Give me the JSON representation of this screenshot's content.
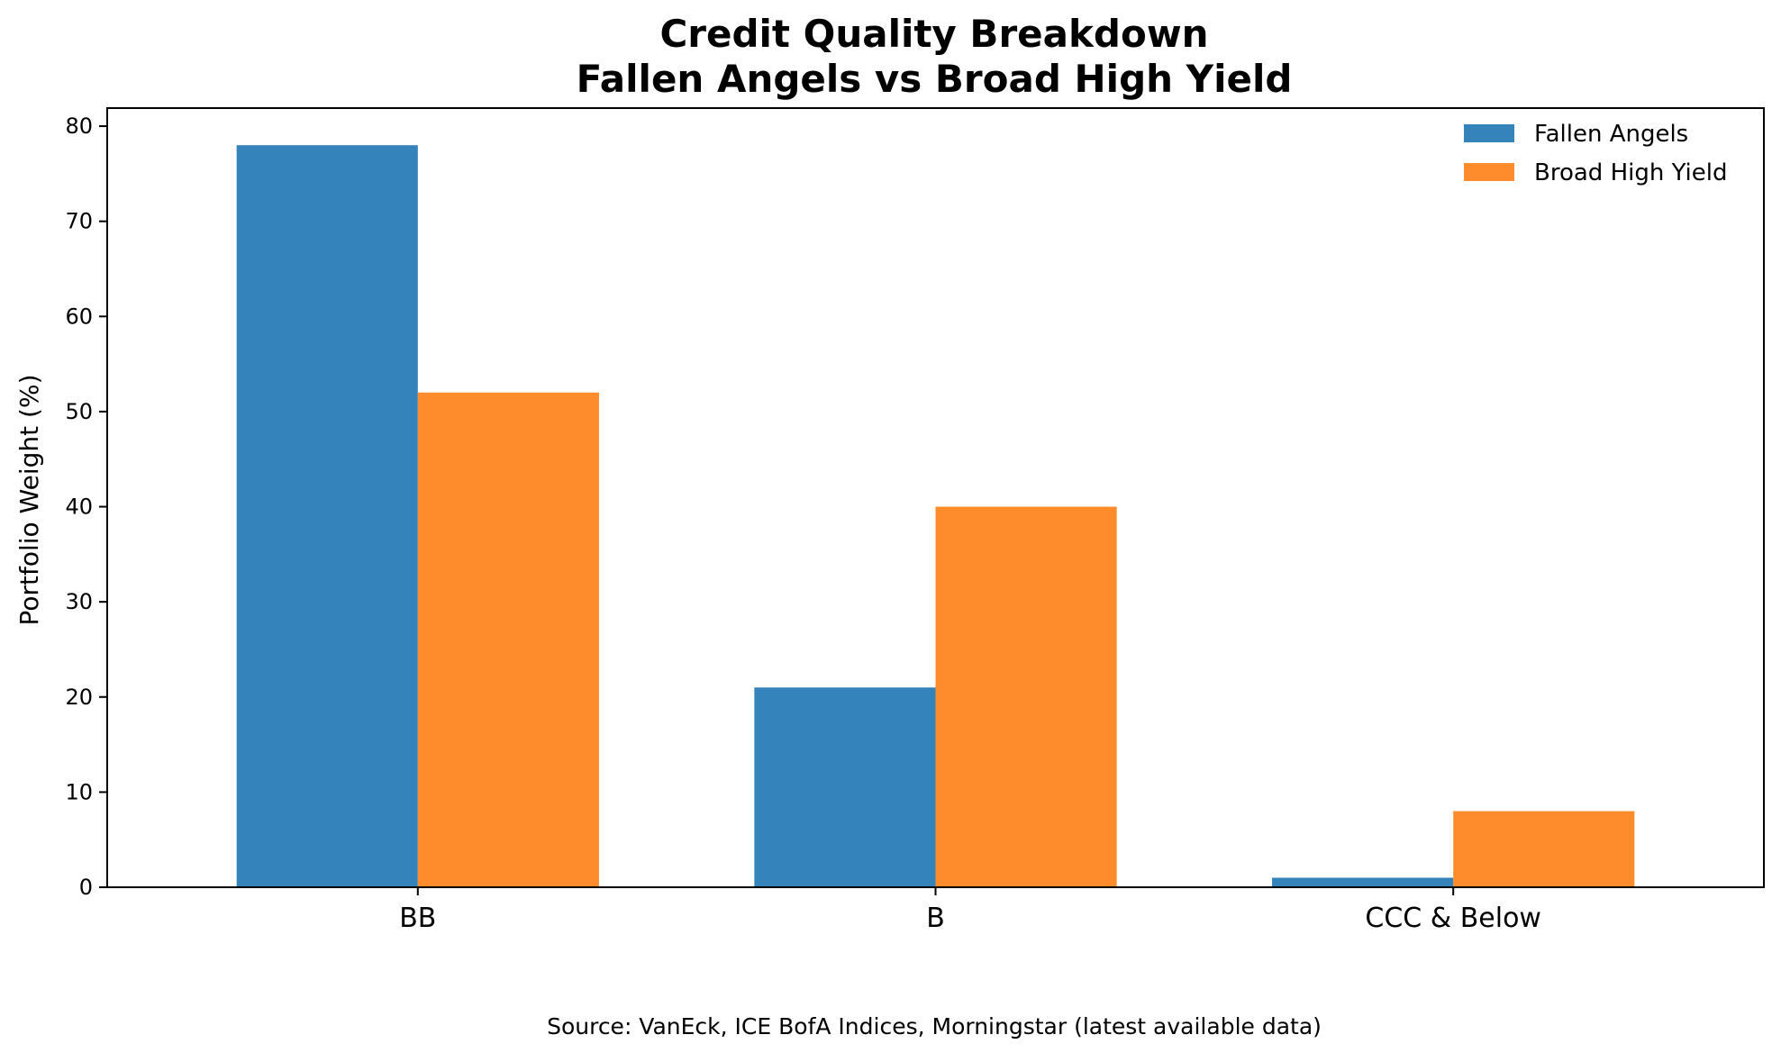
{
  "chart_data": {
    "type": "bar",
    "title": "Credit Quality Breakdown",
    "subtitle": "Fallen Angels vs Broad High Yield",
    "xlabel": "",
    "ylabel": "Portfolio Weight (%)",
    "categories": [
      "BB",
      "B",
      "CCC & Below"
    ],
    "series": [
      {
        "name": "Fallen Angels",
        "values": [
          78,
          21,
          1
        ],
        "color": "#3583bb"
      },
      {
        "name": "Broad High Yield",
        "values": [
          52,
          40,
          8
        ],
        "color": "#ff8c2a"
      }
    ],
    "ylim": [
      0,
      81.9
    ],
    "yticks": [
      0,
      10,
      20,
      30,
      40,
      50,
      60,
      70,
      80
    ],
    "grid": false,
    "legend_position": "top-right",
    "source_note": "Source: VanEck, ICE BofA Indices, Morningstar (latest available data)"
  }
}
